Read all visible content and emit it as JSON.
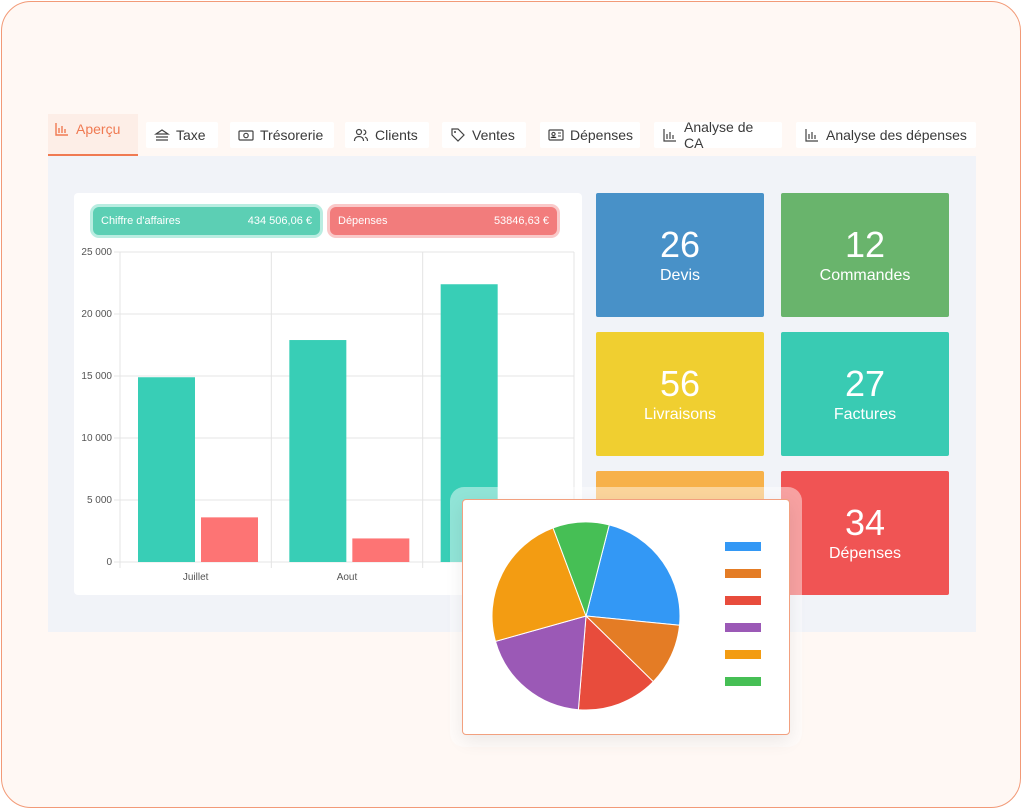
{
  "tabs": [
    {
      "label": "Aperçu",
      "icon": "bar-chart-icon",
      "active": true
    },
    {
      "label": "Taxe",
      "icon": "bank-icon"
    },
    {
      "label": "Trésorerie",
      "icon": "banknote-icon"
    },
    {
      "label": "Clients",
      "icon": "users-icon"
    },
    {
      "label": "Ventes",
      "icon": "tag-icon"
    },
    {
      "label": "Dépenses",
      "icon": "id-card-icon"
    },
    {
      "label": "Analyse de CA",
      "icon": "bar-chart-icon"
    },
    {
      "label": "Analyse des dépenses",
      "icon": "bar-chart-icon"
    }
  ],
  "summary": {
    "revenue_label": "Chiffre d'affaires",
    "revenue_value": "434 506,06 €",
    "expenses_label": "Dépenses",
    "expenses_value": "53846,63 €"
  },
  "stats": [
    {
      "value": "26",
      "label": "Devis",
      "color": "#4891c8"
    },
    {
      "value": "12",
      "label": "Commandes",
      "color": "#69b46c"
    },
    {
      "value": "56",
      "label": "Livraisons",
      "color": "#f0cf30"
    },
    {
      "value": "27",
      "label": "Factures",
      "color": "#39cbb3"
    },
    {
      "value": "",
      "label": "",
      "color": "#f7b14a"
    },
    {
      "value": "34",
      "label": "Dépenses",
      "color": "#f05454"
    }
  ],
  "chart_data": [
    {
      "type": "bar",
      "categories": [
        "Juillet",
        "Aout",
        ""
      ],
      "series": [
        {
          "values": [
            14900,
            17900,
            22400
          ],
          "color": "#38ceb6"
        },
        {
          "values": [
            3600,
            1900,
            null
          ],
          "color": "#fd7474"
        }
      ],
      "ylim": [
        0,
        25000
      ],
      "yticks": [
        "0",
        "5 000",
        "10 000",
        "15 000",
        "20 000",
        "25 000"
      ],
      "grid": true
    },
    {
      "type": "pie",
      "values": [
        21,
        10,
        13,
        18,
        22,
        9
      ],
      "colors": [
        "#3398f5",
        "#e47c25",
        "#e84c3c",
        "#9b59b6",
        "#f39c12",
        "#46bf55"
      ],
      "legend": "right"
    }
  ]
}
